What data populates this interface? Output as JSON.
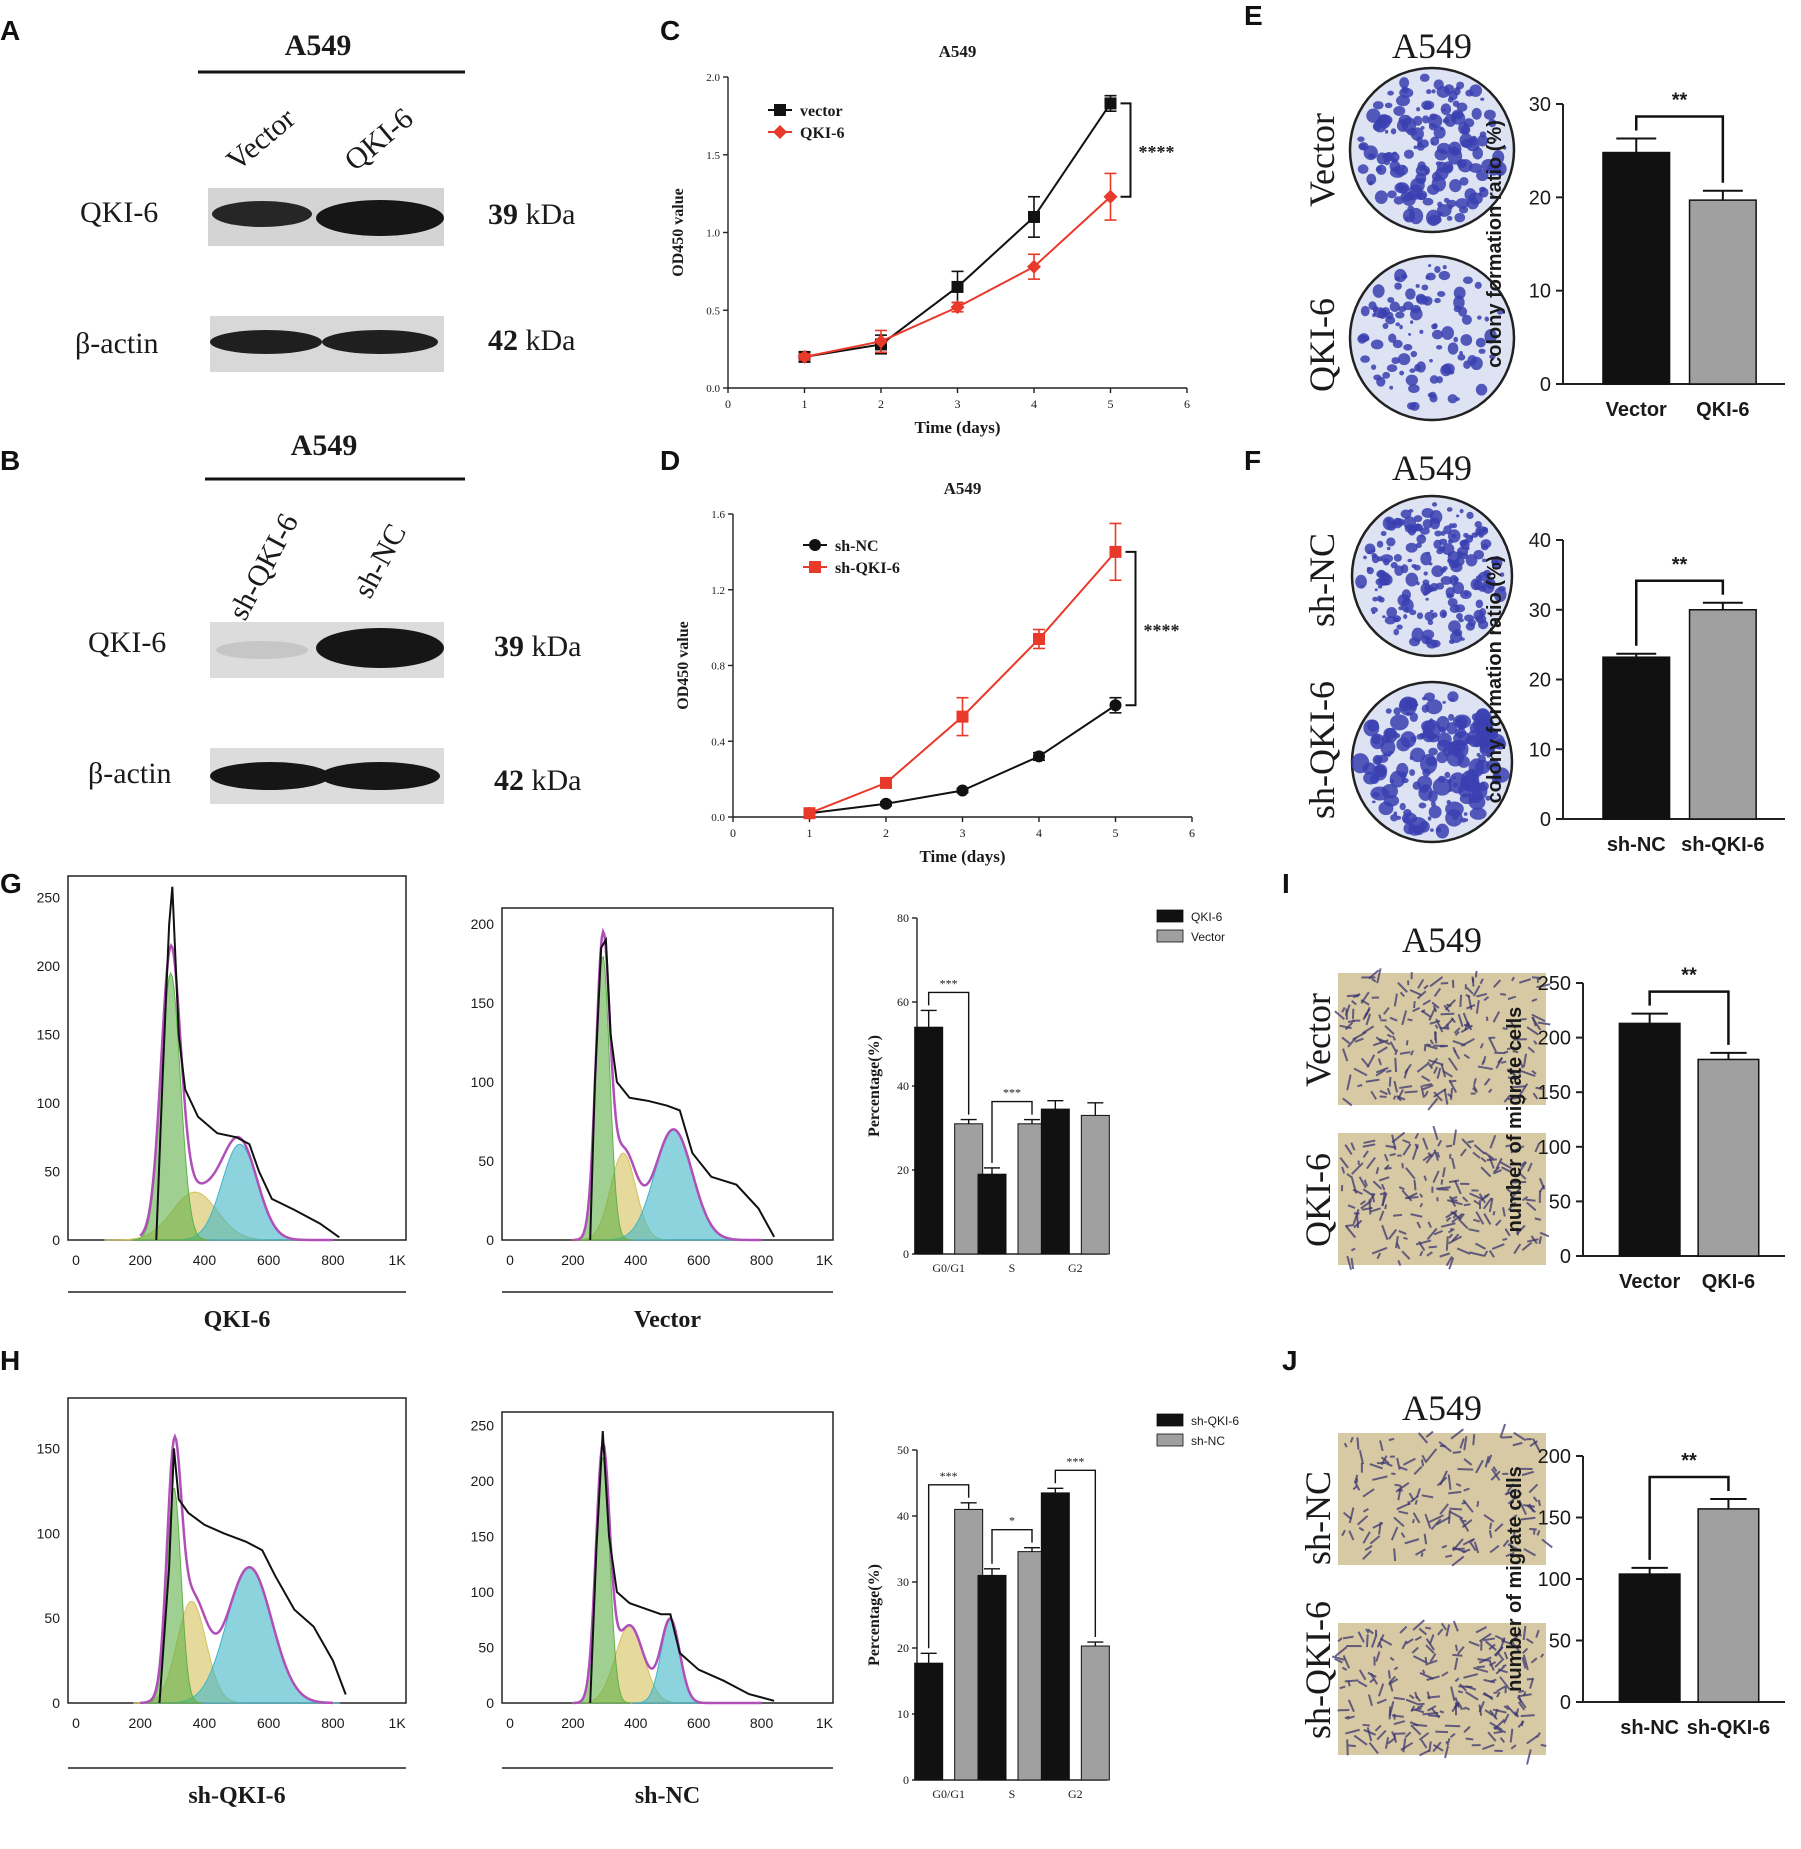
{
  "panel_letters": {
    "A": "A",
    "B": "B",
    "C": "C",
    "D": "D",
    "E": "E",
    "F": "F",
    "G": "G",
    "H": "H",
    "I": "I",
    "J": "J"
  },
  "western": {
    "A": {
      "cell": "A549",
      "lanes": [
        "Vector",
        "QKI-6"
      ],
      "rows": [
        {
          "label": "QKI-6",
          "kda_num": "39",
          "kda_unit": "kDa"
        },
        {
          "label": "β-actin",
          "kda_num": "42",
          "kda_unit": "kDa"
        }
      ]
    },
    "B": {
      "cell": "A549",
      "lanes": [
        "sh-QKI-6",
        "sh-NC"
      ],
      "rows": [
        {
          "label": "QKI-6",
          "kda_num": "39",
          "kda_unit": "kDa"
        },
        {
          "label": "β-actin",
          "kda_num": "42",
          "kda_unit": "kDa"
        }
      ]
    }
  },
  "colony": {
    "E": {
      "cell": "A549",
      "wells": [
        "Vector",
        "QKI-6"
      ]
    },
    "F": {
      "cell": "A549",
      "wells": [
        "sh-NC",
        "sh-QKI-6"
      ]
    }
  },
  "transwell": {
    "I": {
      "cell": "A549",
      "wells": [
        "Vector",
        "QKI-6"
      ]
    },
    "J": {
      "cell": "A549",
      "wells": [
        "sh-NC",
        "sh-QKI-6"
      ]
    }
  },
  "histogram_labels": {
    "G1": "QKI-6",
    "G2": "Vector",
    "H1": "sh-QKI-6",
    "H2": "sh-NC"
  },
  "colors": {
    "black": "#111111",
    "red": "#e8392a",
    "gray": "#a0a0a0",
    "g0": "#5fb04a",
    "s": "#d4c25a",
    "g2": "#3fb6c8",
    "fit": "#b04fb8",
    "colony": "#3a3fb0",
    "dish": "#dde3f2",
    "membrane": "#d7c9a3"
  },
  "chart_data": [
    {
      "id": "C",
      "type": "line",
      "title": "A549",
      "xlabel": "Time (days)",
      "ylabel": "OD450 value",
      "xlim": [
        0,
        6
      ],
      "ylim": [
        0,
        2.0
      ],
      "xticks": [
        0,
        1,
        2,
        3,
        4,
        5,
        6
      ],
      "yticks": [
        0.0,
        0.5,
        1.0,
        1.5,
        2.0
      ],
      "yticklabels": [
        "0.0",
        "0.5",
        "1.0",
        "1.5",
        "2.0"
      ],
      "significance": "****",
      "x": [
        1,
        2,
        3,
        4,
        5
      ],
      "series": [
        {
          "name": "vector",
          "color": "#111111",
          "marker": "square",
          "values": [
            0.2,
            0.28,
            0.65,
            1.1,
            1.83
          ],
          "errors": [
            0.02,
            0.06,
            0.1,
            0.13,
            0.05
          ]
        },
        {
          "name": "QKI-6",
          "color": "#e8392a",
          "marker": "diamond",
          "values": [
            0.2,
            0.3,
            0.52,
            0.78,
            1.23
          ],
          "errors": [
            0.02,
            0.07,
            0.03,
            0.08,
            0.15
          ]
        }
      ]
    },
    {
      "id": "D",
      "type": "line",
      "title": "A549",
      "xlabel": "Time (days)",
      "ylabel": "OD450 value",
      "xlim": [
        0,
        6
      ],
      "ylim": [
        0,
        1.6
      ],
      "xticks": [
        0,
        1,
        2,
        3,
        4,
        5,
        6
      ],
      "yticks": [
        0.0,
        0.4,
        0.8,
        1.2,
        1.6
      ],
      "yticklabels": [
        "0.0",
        "0.4",
        "0.8",
        "1.2",
        "1.6"
      ],
      "significance": "****",
      "x": [
        1,
        2,
        3,
        4,
        5
      ],
      "series": [
        {
          "name": "sh-NC",
          "color": "#111111",
          "marker": "circle",
          "values": [
            0.02,
            0.07,
            0.14,
            0.32,
            0.59
          ],
          "errors": [
            0.01,
            0.01,
            0.01,
            0.02,
            0.04
          ]
        },
        {
          "name": "sh-QKI-6",
          "color": "#e8392a",
          "marker": "square",
          "values": [
            0.02,
            0.18,
            0.53,
            0.94,
            1.4
          ],
          "errors": [
            0.01,
            0.02,
            0.1,
            0.05,
            0.15
          ]
        }
      ]
    },
    {
      "id": "E",
      "type": "bar",
      "ylabel": "colony formation ratio (%)",
      "ylim": [
        0,
        30
      ],
      "yticks": [
        0,
        10,
        20,
        30
      ],
      "categories": [
        "Vector",
        "QKI-6"
      ],
      "values": [
        24.8,
        19.7
      ],
      "errors": [
        1.5,
        1.0
      ],
      "colors": [
        "#111111",
        "#a0a0a0"
      ],
      "significance": "**"
    },
    {
      "id": "F",
      "type": "bar",
      "ylabel": "colony formation ratio (%)",
      "ylim": [
        0,
        40
      ],
      "yticks": [
        0,
        10,
        20,
        30,
        40
      ],
      "categories": [
        "sh-NC",
        "sh-QKI-6"
      ],
      "values": [
        23.2,
        30.0
      ],
      "errors": [
        0.5,
        1.0
      ],
      "colors": [
        "#111111",
        "#a0a0a0"
      ],
      "significance": "**"
    },
    {
      "id": "I",
      "type": "bar",
      "ylabel": "number of migrate cells",
      "ylim": [
        0,
        250
      ],
      "yticks": [
        0,
        50,
        100,
        150,
        200,
        250
      ],
      "categories": [
        "Vector",
        "QKI-6"
      ],
      "values": [
        213,
        180
      ],
      "errors": [
        9,
        6
      ],
      "colors": [
        "#111111",
        "#a0a0a0"
      ],
      "significance": "**"
    },
    {
      "id": "J",
      "type": "bar",
      "ylabel": "number of migrate cells",
      "ylim": [
        0,
        200
      ],
      "yticks": [
        0,
        50,
        100,
        150,
        200
      ],
      "categories": [
        "sh-NC",
        "sh-QKI-6"
      ],
      "values": [
        104,
        157
      ],
      "errors": [
        5,
        8
      ],
      "colors": [
        "#111111",
        "#a0a0a0"
      ],
      "significance": "**"
    },
    {
      "id": "G3",
      "type": "bar",
      "ylabel": "Percentage(%)",
      "ylim": [
        0,
        80
      ],
      "yticks": [
        0,
        20,
        40,
        60,
        80
      ],
      "categories": [
        "G0/G1",
        "S",
        "G2"
      ],
      "series": [
        {
          "name": "QKI-6",
          "color": "#111111",
          "values": [
            54,
            19,
            34.5
          ],
          "errors": [
            4,
            1.5,
            2
          ]
        },
        {
          "name": "Vector",
          "color": "#a0a0a0",
          "values": [
            31,
            31,
            33
          ],
          "errors": [
            1,
            1,
            3
          ]
        }
      ],
      "significance": [
        "***",
        "***",
        ""
      ]
    },
    {
      "id": "H3",
      "type": "bar",
      "ylabel": "Percentage(%)",
      "ylim": [
        0,
        50
      ],
      "yticks": [
        0,
        10,
        20,
        30,
        40,
        50
      ],
      "categories": [
        "G0/G1",
        "S",
        "G2"
      ],
      "series": [
        {
          "name": "sh-QKI-6",
          "color": "#111111",
          "values": [
            17.7,
            31,
            43.5
          ],
          "errors": [
            1.5,
            1,
            0.7
          ]
        },
        {
          "name": "sh-NC",
          "color": "#a0a0a0",
          "values": [
            41,
            34.6,
            20.3
          ],
          "errors": [
            1,
            0.6,
            0.6
          ]
        }
      ],
      "significance": [
        "***",
        "*",
        "***"
      ]
    },
    {
      "id": "G1",
      "type": "area",
      "xlabel": "QKI-6",
      "xlim": [
        0,
        1000
      ],
      "ylim": [
        0,
        260
      ],
      "xticklabels": [
        "0",
        "200",
        "400",
        "600",
        "800",
        "1K"
      ],
      "yticks": [
        0,
        50,
        100,
        150,
        200,
        250
      ],
      "g0": {
        "mu": 295,
        "sd": 30,
        "h": 195
      },
      "s": {
        "mu": 370,
        "sd": 70,
        "h": 35
      },
      "g2": {
        "mu": 510,
        "sd": 55,
        "h": 70
      },
      "raw": [
        [
          250,
          0
        ],
        [
          270,
          120
        ],
        [
          290,
          230
        ],
        [
          300,
          258
        ],
        [
          320,
          150
        ],
        [
          340,
          110
        ],
        [
          380,
          90
        ],
        [
          440,
          78
        ],
        [
          500,
          75
        ],
        [
          540,
          70
        ],
        [
          570,
          50
        ],
        [
          610,
          30
        ],
        [
          680,
          22
        ],
        [
          760,
          12
        ],
        [
          820,
          2
        ]
      ]
    },
    {
      "id": "G2",
      "type": "area",
      "xlabel": "Vector",
      "xlim": [
        0,
        1000
      ],
      "ylim": [
        0,
        205
      ],
      "xticklabels": [
        "0",
        "200",
        "400",
        "600",
        "800",
        "1K"
      ],
      "yticks": [
        0,
        50,
        100,
        150,
        200
      ],
      "g0": {
        "mu": 295,
        "sd": 22,
        "h": 180
      },
      "s": {
        "mu": 360,
        "sd": 40,
        "h": 55
      },
      "g2": {
        "mu": 520,
        "sd": 60,
        "h": 70
      },
      "raw": [
        [
          255,
          0
        ],
        [
          270,
          100
        ],
        [
          290,
          185
        ],
        [
          305,
          190
        ],
        [
          320,
          130
        ],
        [
          340,
          100
        ],
        [
          380,
          90
        ],
        [
          440,
          88
        ],
        [
          500,
          85
        ],
        [
          540,
          82
        ],
        [
          580,
          55
        ],
        [
          640,
          40
        ],
        [
          720,
          35
        ],
        [
          790,
          20
        ],
        [
          840,
          2
        ]
      ]
    },
    {
      "id": "H1",
      "type": "area",
      "xlabel": "sh-QKI-6",
      "xlim": [
        0,
        1000
      ],
      "ylim": [
        0,
        175
      ],
      "xticklabels": [
        "0",
        "200",
        "400",
        "600",
        "800",
        "1K"
      ],
      "yticks": [
        0,
        50,
        100,
        150
      ],
      "g0": {
        "mu": 305,
        "sd": 22,
        "h": 127
      },
      "s": {
        "mu": 360,
        "sd": 45,
        "h": 60
      },
      "g2": {
        "mu": 540,
        "sd": 70,
        "h": 80
      },
      "raw": [
        [
          260,
          0
        ],
        [
          290,
          80
        ],
        [
          305,
          150
        ],
        [
          320,
          120
        ],
        [
          350,
          112
        ],
        [
          400,
          105
        ],
        [
          460,
          100
        ],
        [
          530,
          95
        ],
        [
          580,
          90
        ],
        [
          620,
          75
        ],
        [
          680,
          55
        ],
        [
          740,
          45
        ],
        [
          800,
          25
        ],
        [
          840,
          5
        ]
      ]
    },
    {
      "id": "H2",
      "type": "area",
      "xlabel": "sh-NC",
      "xlim": [
        0,
        1000
      ],
      "ylim": [
        0,
        255
      ],
      "xticklabels": [
        "0",
        "200",
        "400",
        "600",
        "800",
        "1K"
      ],
      "yticks": [
        0,
        50,
        100,
        150,
        200,
        250
      ],
      "g0": {
        "mu": 295,
        "sd": 22,
        "h": 222
      },
      "s": {
        "mu": 380,
        "sd": 45,
        "h": 70
      },
      "g2": {
        "mu": 510,
        "sd": 30,
        "h": 75
      },
      "raw": [
        [
          255,
          0
        ],
        [
          275,
          140
        ],
        [
          295,
          245
        ],
        [
          315,
          150
        ],
        [
          340,
          100
        ],
        [
          380,
          90
        ],
        [
          430,
          85
        ],
        [
          480,
          80
        ],
        [
          510,
          80
        ],
        [
          540,
          45
        ],
        [
          600,
          30
        ],
        [
          680,
          20
        ],
        [
          760,
          8
        ],
        [
          840,
          2
        ]
      ]
    }
  ]
}
